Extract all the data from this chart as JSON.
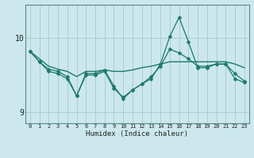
{
  "xlabel": "Humidex (Indice chaleur)",
  "bg_color": "#cce8ec",
  "grid_color": "#aacdd4",
  "line_color": "#1a7a6e",
  "x_values": [
    0,
    1,
    2,
    3,
    4,
    5,
    6,
    7,
    8,
    9,
    10,
    11,
    12,
    13,
    14,
    15,
    16,
    17,
    18,
    19,
    20,
    21,
    22,
    23
  ],
  "series": [
    {
      "y": [
        9.82,
        9.72,
        9.62,
        9.58,
        9.55,
        9.48,
        9.55,
        9.55,
        9.57,
        9.55,
        9.55,
        9.57,
        9.6,
        9.62,
        9.65,
        9.68,
        9.68,
        9.68,
        9.68,
        9.68,
        9.68,
        9.68,
        9.65,
        9.6
      ],
      "marker": false,
      "linewidth": 1.0
    },
    {
      "y": [
        9.82,
        9.68,
        9.55,
        9.52,
        9.45,
        9.22,
        9.52,
        9.52,
        9.57,
        9.35,
        9.18,
        9.3,
        9.38,
        9.45,
        9.65,
        10.02,
        10.28,
        9.95,
        9.6,
        9.6,
        9.65,
        9.65,
        9.45,
        9.4
      ],
      "marker": true,
      "linewidth": 0.9
    },
    {
      "y": [
        9.82,
        9.68,
        9.58,
        9.55,
        9.48,
        9.22,
        9.5,
        9.5,
        9.55,
        9.32,
        9.2,
        9.3,
        9.38,
        9.48,
        9.62,
        9.85,
        9.8,
        9.72,
        9.62,
        9.62,
        9.65,
        9.65,
        9.52,
        9.42
      ],
      "marker": true,
      "linewidth": 0.9
    }
  ],
  "ylim": [
    8.85,
    10.45
  ],
  "yticks": [
    9.0,
    10.0
  ],
  "ytick_labels": [
    "9",
    "10"
  ],
  "xlim": [
    -0.5,
    23.5
  ],
  "xtick_labels": [
    "0",
    "1",
    "2",
    "3",
    "4",
    "5",
    "6",
    "7",
    "8",
    "9",
    "10",
    "11",
    "12",
    "13",
    "14",
    "15",
    "16",
    "17",
    "18",
    "19",
    "20",
    "21",
    "22",
    "23"
  ],
  "marker_style": "D",
  "markersize": 2.5
}
